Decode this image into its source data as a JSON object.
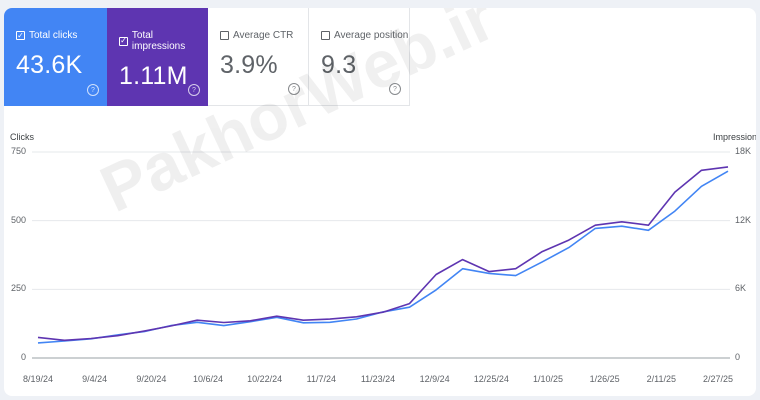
{
  "metrics": {
    "clicks": {
      "label": "Total clicks",
      "value": "43.6K",
      "checked": true
    },
    "impressions": {
      "label": "Total impressions",
      "value": "1.11M",
      "checked": true
    },
    "ctr": {
      "label": "Average CTR",
      "value": "3.9%",
      "checked": false
    },
    "position": {
      "label": "Average position",
      "value": "9.3",
      "checked": false
    }
  },
  "watermark": "PakhorWeb.ir",
  "colors": {
    "clicks": "#4285f4",
    "impressions": "#5e35b1"
  },
  "icons": {
    "checked": "check-box-icon",
    "unchecked": "empty-box-icon",
    "help": "help-circle-icon"
  },
  "chart_data": {
    "type": "line",
    "ylabel": "Clicks",
    "y2label": "Impressions",
    "ylim": [
      0,
      750
    ],
    "y2lim": [
      0,
      18000
    ],
    "yticks": [
      "750",
      "500",
      "250",
      "0"
    ],
    "y2ticks": [
      "18K",
      "12K",
      "6K",
      "0"
    ],
    "xticks": [
      "8/19/24",
      "9/4/24",
      "9/20/24",
      "10/6/24",
      "10/22/24",
      "11/7/24",
      "11/23/24",
      "12/9/24",
      "12/25/24",
      "1/10/25",
      "1/26/25",
      "2/11/25",
      "2/27/25"
    ],
    "grid": true,
    "series": [
      {
        "name": "Clicks",
        "axis": "left",
        "color": "#4285f4",
        "values": [
          55,
          62,
          70,
          84,
          96,
          118,
          130,
          118,
          132,
          148,
          128,
          130,
          142,
          168,
          185,
          248,
          325,
          308,
          300,
          350,
          402,
          472,
          480,
          465,
          535,
          625,
          680
        ]
      },
      {
        "name": "Impressions",
        "axis": "right",
        "color": "#5e35b1",
        "values": [
          1800,
          1550,
          1700,
          1950,
          2350,
          2800,
          3300,
          3100,
          3250,
          3650,
          3300,
          3400,
          3600,
          4000,
          4750,
          7300,
          8600,
          7550,
          7800,
          9300,
          10300,
          11600,
          11900,
          11600,
          14500,
          16400,
          16700
        ]
      }
    ]
  }
}
